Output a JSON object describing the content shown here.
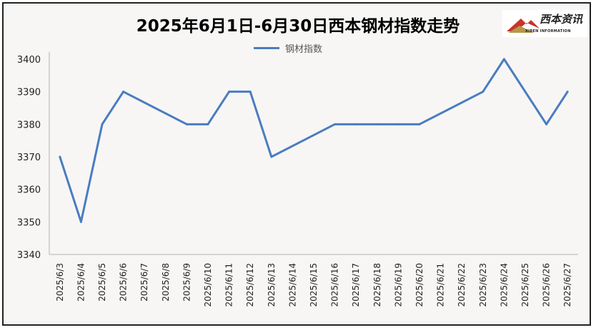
{
  "chart_data": {
    "type": "line",
    "title": "2025年6月1日-6月30日西本钢材指数走势",
    "legend": [
      "钢材指数"
    ],
    "legend_position": "top-center",
    "xlabel": "",
    "ylabel": "",
    "ylim": [
      3340,
      3400
    ],
    "yticks": [
      3340,
      3350,
      3360,
      3370,
      3380,
      3390,
      3400
    ],
    "categories": [
      "2025/6/3",
      "2025/6/4",
      "2025/6/5",
      "2025/6/6",
      "2025/6/7",
      "2025/6/8",
      "2025/6/9",
      "2025/6/10",
      "2025/6/11",
      "2025/6/12",
      "2025/6/13",
      "2025/6/14",
      "2025/6/15",
      "2025/6/16",
      "2025/6/17",
      "2025/6/18",
      "2025/6/19",
      "2025/6/20",
      "2025/6/21",
      "2025/6/22",
      "2025/6/23",
      "2025/6/24",
      "2025/6/25",
      "2025/6/26",
      "2025/6/27"
    ],
    "series": [
      {
        "name": "钢材指数",
        "color": "#4a7cc0",
        "values": [
          3370,
          3350,
          3380,
          3390,
          null,
          null,
          3380,
          3380,
          3390,
          3390,
          3370,
          null,
          null,
          3380,
          3380,
          3380,
          3380,
          3380,
          null,
          null,
          3390,
          3400,
          3390,
          3380,
          3390
        ]
      }
    ],
    "grid": false,
    "drop_lines": true
  },
  "logo": {
    "cn": "西本资讯",
    "en": "XIBEN INFORMATION"
  }
}
